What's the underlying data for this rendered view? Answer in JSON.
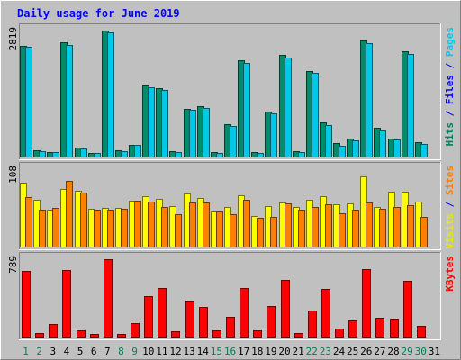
{
  "chart_data": {
    "type": "bar",
    "title": "Daily usage for June 2019",
    "categories": [
      "1",
      "2",
      "3",
      "4",
      "5",
      "6",
      "7",
      "8",
      "9",
      "10",
      "11",
      "12",
      "13",
      "14",
      "15",
      "16",
      "17",
      "18",
      "19",
      "20",
      "21",
      "22",
      "23",
      "24",
      "25",
      "26",
      "27",
      "28",
      "29",
      "30",
      "31"
    ],
    "weekend_categories": [
      "1",
      "2",
      "8",
      "9",
      "15",
      "16",
      "22",
      "23",
      "29",
      "30"
    ],
    "panels": [
      {
        "id": "top",
        "scale_label": "2819",
        "ymax": 2819,
        "right_label_parts": [
          {
            "text": "Hits",
            "color": "#00805c"
          },
          {
            "text": " / ",
            "color": "#0000ff"
          },
          {
            "text": "Files",
            "color": "#0000ff"
          },
          {
            "text": " / ",
            "color": "#0000ff"
          },
          {
            "text": "Pages",
            "color": "#00c8e8"
          }
        ],
        "series": [
          {
            "name": "Hits",
            "color": "#008b6b",
            "values": [
              2483,
              137,
              110,
              2562,
              206,
              87,
              2819,
              132,
              268,
              1598,
              1527,
              118,
              1074,
              1126,
              94,
              723,
              2151,
              98,
              1003,
              2271,
              125,
              1905,
              770,
              298,
              394,
              2596,
              653,
              410,
              2348,
              317,
              0
            ]
          },
          {
            "name": "Files",
            "color": "#00c8e8",
            "values": [
              2447,
              121,
              100,
              2501,
              186,
              76,
              2777,
              117,
              253,
              1560,
              1480,
              108,
              1040,
              1091,
              81,
              694,
              2101,
              85,
              964,
              2219,
              108,
              1869,
              712,
              241,
              370,
              2528,
              585,
              381,
              2293,
              279,
              0
            ]
          }
        ]
      },
      {
        "id": "middle",
        "scale_label": "108",
        "ymax": 108,
        "right_label_parts": [
          {
            "text": "Visits",
            "color": "#e8e800"
          },
          {
            "text": " / ",
            "color": "#0000ff"
          },
          {
            "text": "Sites",
            "color": "#ff8000"
          }
        ],
        "series": [
          {
            "name": "Visits",
            "color": "#ffff00",
            "values": [
              89,
              65,
              52,
              80,
              78,
              53,
              54,
              54,
              64,
              70,
              67,
              56,
              74,
              68,
              49,
              55,
              71,
              43,
              57,
              61,
              55,
              65,
              70,
              59,
              60,
              98,
              55,
              76,
              77,
              63,
              0
            ]
          },
          {
            "name": "Sites",
            "color": "#ff8000",
            "values": [
              69,
              51,
              54,
              92,
              75,
              51,
              51,
              53,
              64,
              63,
              55,
              45,
              62,
              61,
              49,
              45,
              65,
              40,
              42,
              60,
              51,
              55,
              59,
              46,
              51,
              62,
              53,
              55,
              58,
              41,
              0
            ]
          }
        ]
      },
      {
        "id": "bottom",
        "scale_label": "789",
        "ymax": 789,
        "right_label_parts": [
          {
            "text": "KBytes",
            "color": "#ff0000"
          }
        ],
        "series": [
          {
            "name": "KBytes",
            "color": "#ff0000",
            "values": [
              669,
              38,
              124,
              680,
              62,
              30,
              789,
              31,
              134,
              410,
              494,
              52,
              364,
              305,
              67,
              205,
              492,
              63,
              313,
              578,
              37,
              264,
              486,
              84,
              161,
              689,
              192,
              180,
              570,
              108,
              0
            ]
          }
        ]
      }
    ],
    "colors": {
      "background": "#c0c0c0",
      "title": "#0000ff",
      "weekend_label": "#00805c",
      "weekday_label": "#000000",
      "scale_label": "#000000"
    }
  }
}
